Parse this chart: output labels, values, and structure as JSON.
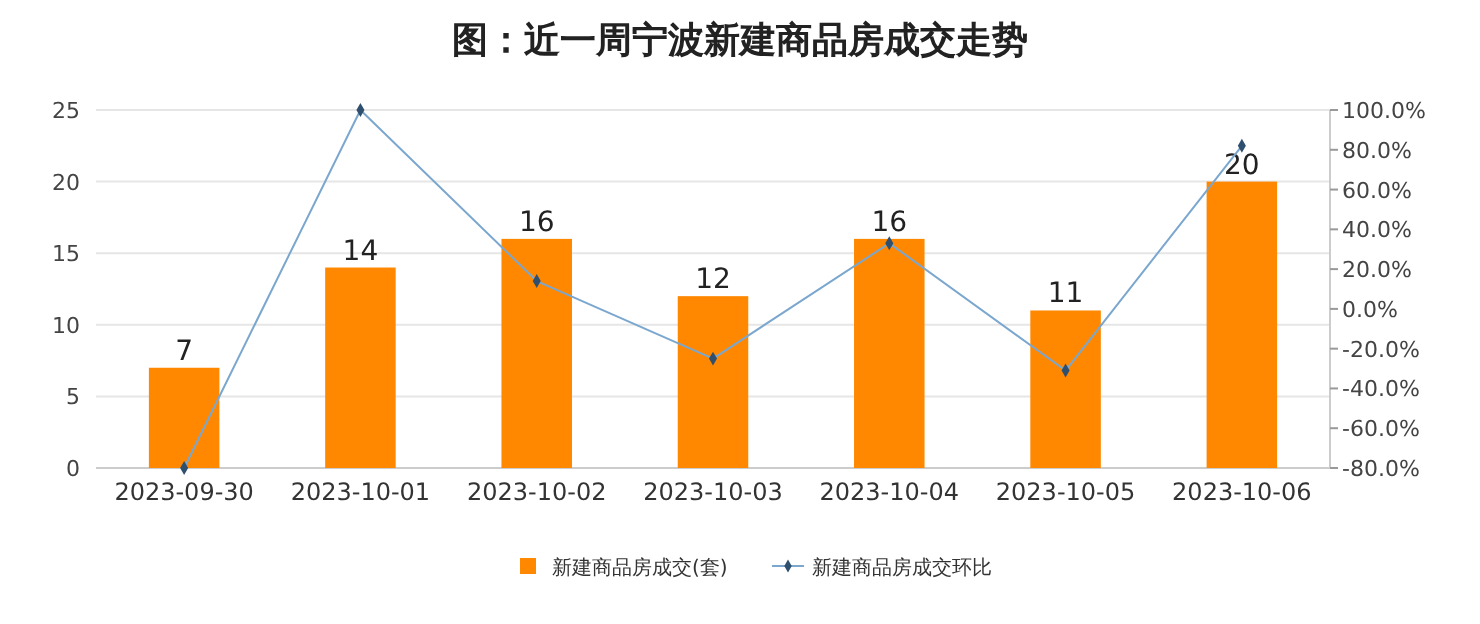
{
  "chart_data": {
    "type": "bar",
    "title": "图：近一周宁波新建商品房成交走势",
    "categories": [
      "2023-09-30",
      "2023-10-01",
      "2023-10-02",
      "2023-10-03",
      "2023-10-04",
      "2023-10-05",
      "2023-10-06"
    ],
    "series": [
      {
        "name": "新建商品房成交(套)",
        "color": "#ff8800",
        "values": [
          7,
          14,
          16,
          12,
          16,
          11,
          20
        ],
        "data_labels": true
      },
      {
        "name": "新建商品房成交环比",
        "type": "line",
        "axis": "y2",
        "color": "#7ba7cf",
        "marker": "diamond",
        "values": [
          -80,
          100,
          14,
          -25,
          33,
          -31,
          82
        ]
      }
    ],
    "ylim": [
      0,
      25
    ],
    "yticks": [
      0,
      5,
      10,
      15,
      20,
      25
    ],
    "y2lim": [
      -80,
      100
    ],
    "y2ticks": [
      {
        "value": -80,
        "label": "-80.0%"
      },
      {
        "value": -60,
        "label": "-60.0%"
      },
      {
        "value": -40,
        "label": "-40.0%"
      },
      {
        "value": -20,
        "label": "-20.0%"
      },
      {
        "value": 0,
        "label": "0.0%"
      },
      {
        "value": 20,
        "label": "20.0%"
      },
      {
        "value": 40,
        "label": "40.0%"
      },
      {
        "value": 60,
        "label": "60.0%"
      },
      {
        "value": 80,
        "label": "80.0%"
      },
      {
        "value": 100,
        "label": "100.0%"
      }
    ],
    "grid": "y",
    "legend": "bottom"
  }
}
